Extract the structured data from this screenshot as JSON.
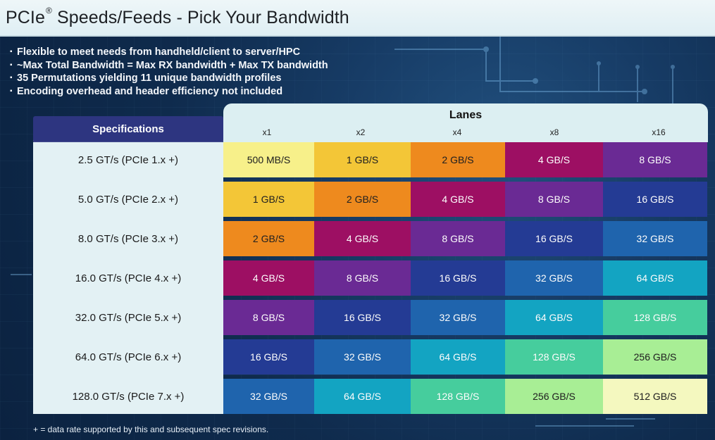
{
  "slide": {
    "title_main": "PCIe",
    "title_suffix": " Speeds/Feeds - Pick Your Bandwidth",
    "registered": "®",
    "bullets": [
      "Flexible to meet needs from handheld/client to server/HPC",
      "~Max Total Bandwidth = Max RX bandwidth + Max TX bandwidth",
      "35 Permutations yielding 11 unique bandwidth profiles",
      "Encoding overhead and header efficiency not included"
    ],
    "lanes_title": "Lanes",
    "spec_header": "Specifications",
    "lanes": [
      "x1",
      "x2",
      "x4",
      "x8",
      "x16"
    ],
    "rows": [
      {
        "spec": "2.5 GT/s (PCIe 1.x +)",
        "values": [
          "500 MB/S",
          "1 GB/S",
          "2 GB/S",
          "4 GB/S",
          "8 GB/S"
        ]
      },
      {
        "spec": "5.0 GT/s (PCIe 2.x +)",
        "values": [
          "1 GB/S",
          "2 GB/S",
          "4 GB/S",
          "8 GB/S",
          "16 GB/S"
        ]
      },
      {
        "spec": "8.0 GT/s (PCIe 3.x +)",
        "values": [
          "2 GB/S",
          "4 GB/S",
          "8 GB/S",
          "16 GB/S",
          "32 GB/S"
        ]
      },
      {
        "spec": "16.0 GT/s (PCIe 4.x +)",
        "values": [
          "4 GB/S",
          "8 GB/S",
          "16 GB/S",
          "32 GB/S",
          "64 GB/S"
        ]
      },
      {
        "spec": "32.0 GT/s (PCIe 5.x +)",
        "values": [
          "8 GB/S",
          "16 GB/S",
          "32 GB/S",
          "64 GB/S",
          "128 GB/S"
        ]
      },
      {
        "spec": "64.0 GT/s (PCIe 6.x +)",
        "values": [
          "16 GB/S",
          "32 GB/S",
          "64 GB/S",
          "128 GB/S",
          "256 GB/S"
        ]
      },
      {
        "spec": "128.0 GT/s (PCIe 7.x +)",
        "values": [
          "32 GB/S",
          "64 GB/S",
          "128 GB/S",
          "256 GB/S",
          "512 GB/S"
        ]
      }
    ],
    "footer": "+ = data rate supported by this and subsequent spec revisions."
  },
  "colors": {
    "500 MB/S": "#f7f08a",
    "1 GB/S": "#f3c637",
    "2 GB/S": "#ee8a1e",
    "4 GB/S": "#9d0f63",
    "8 GB/S": "#6a2a94",
    "16 GB/S": "#243b94",
    "32 GB/S": "#1f64ad",
    "64 GB/S": "#13a4c2",
    "128 GB/S": "#46cd9d",
    "256 GB/S": "#a8ee95",
    "512 GB/S": "#f4f8bf"
  }
}
